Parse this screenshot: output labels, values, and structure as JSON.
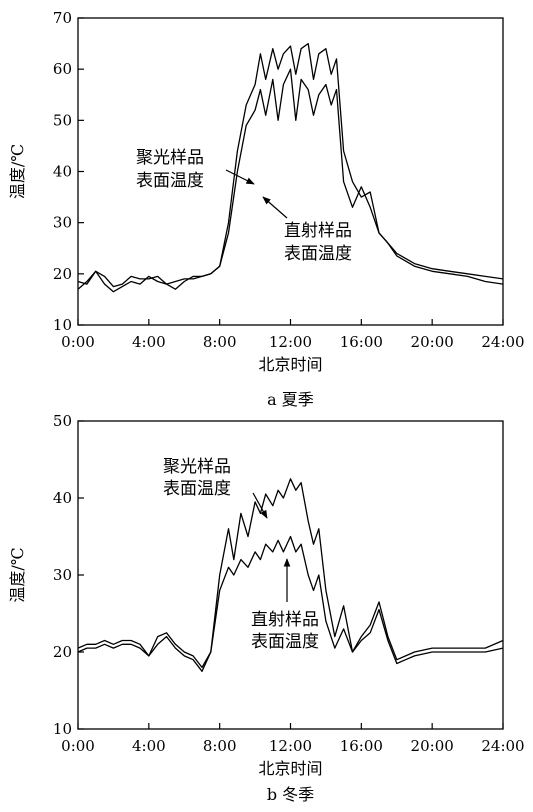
{
  "chart_data": [
    {
      "type": "line",
      "caption": "a 夏季",
      "xlabel": "北京时间",
      "ylabel": "温度/℃",
      "xlim": [
        0,
        24
      ],
      "ylim": [
        10,
        70
      ],
      "xticks": [
        "0:00",
        "4:00",
        "8:00",
        "12:00",
        "16:00",
        "20:00",
        "24:00"
      ],
      "yticks": [
        "10",
        "20",
        "30",
        "40",
        "50",
        "60",
        "70"
      ],
      "annotations": [
        {
          "lines": [
            "聚光样品",
            "表面温度"
          ],
          "series": "聚光样品表面温度"
        },
        {
          "lines": [
            "直射样品",
            "表面温度"
          ],
          "series": "直射样品表面温度"
        }
      ],
      "series": [
        {
          "name": "聚光样品表面温度",
          "x": [
            0,
            0.5,
            1,
            1.5,
            2,
            2.5,
            3,
            3.5,
            4,
            4.5,
            5,
            5.5,
            6,
            6.5,
            7,
            7.5,
            8,
            8.5,
            9,
            9.5,
            10,
            10.3,
            10.6,
            11,
            11.3,
            11.6,
            12,
            12.3,
            12.6,
            13,
            13.3,
            13.6,
            14,
            14.3,
            14.6,
            15,
            15.5,
            16,
            16.5,
            17,
            17.5,
            18,
            19,
            20,
            21,
            22,
            23,
            24
          ],
          "y": [
            17,
            18.5,
            20.5,
            18,
            16.5,
            17.5,
            18.5,
            18,
            19.5,
            18.5,
            18,
            17,
            18.5,
            19.5,
            19.5,
            20,
            21.5,
            30,
            44,
            53,
            57,
            63,
            58,
            64,
            60,
            63,
            64.5,
            59,
            64,
            65,
            58,
            63,
            64,
            59,
            62,
            44,
            38,
            35,
            36,
            28,
            26,
            24,
            22,
            21,
            20.5,
            20,
            19.5,
            19
          ]
        },
        {
          "name": "直射样品表面温度",
          "x": [
            0,
            0.5,
            1,
            1.5,
            2,
            2.5,
            3,
            3.5,
            4,
            4.5,
            5,
            5.5,
            6,
            6.5,
            7,
            7.5,
            8,
            8.5,
            9,
            9.5,
            10,
            10.3,
            10.6,
            11,
            11.3,
            11.6,
            12,
            12.3,
            12.6,
            13,
            13.3,
            13.6,
            14,
            14.3,
            14.6,
            15,
            15.5,
            16,
            16.5,
            17,
            17.5,
            18,
            19,
            20,
            21,
            22,
            23,
            24
          ],
          "y": [
            18.5,
            18,
            20.5,
            19.5,
            17.5,
            18,
            19.5,
            19,
            19,
            19.5,
            18,
            18.5,
            19,
            19,
            19.5,
            20,
            21.5,
            28,
            40,
            49,
            52,
            56,
            51,
            58,
            50,
            57,
            60,
            50,
            58,
            56,
            51,
            55,
            57,
            53,
            56,
            38,
            33,
            37,
            33,
            28,
            26,
            23.5,
            21.5,
            20.5,
            20,
            19.5,
            18.5,
            18
          ]
        }
      ]
    },
    {
      "type": "line",
      "caption": "b 冬季",
      "xlabel": "北京时间",
      "ylabel": "温度/℃",
      "xlim": [
        0,
        24
      ],
      "ylim": [
        10,
        50
      ],
      "xticks": [
        "0:00",
        "4:00",
        "8:00",
        "12:00",
        "16:00",
        "20:00",
        "24:00"
      ],
      "yticks": [
        "10",
        "20",
        "30",
        "40",
        "50"
      ],
      "annotations": [
        {
          "lines": [
            "聚光样品",
            "表面温度"
          ],
          "series": "聚光样品表面温度"
        },
        {
          "lines": [
            "直射样品",
            "表面温度"
          ],
          "series": "直射样品表面温度"
        }
      ],
      "series": [
        {
          "name": "聚光样品表面温度",
          "x": [
            0,
            0.5,
            1,
            1.5,
            2,
            2.5,
            3,
            3.5,
            4,
            4.5,
            5,
            5.5,
            6,
            6.5,
            7,
            7.5,
            8,
            8.5,
            8.8,
            9.2,
            9.6,
            10,
            10.3,
            10.6,
            11,
            11.3,
            11.6,
            12,
            12.3,
            12.6,
            13,
            13.3,
            13.6,
            14,
            14.5,
            15,
            15.5,
            16,
            16.5,
            17,
            17.5,
            18,
            18.5,
            19,
            20,
            21,
            22,
            23,
            24
          ],
          "y": [
            20.5,
            21,
            21,
            21.5,
            21,
            21.5,
            21.5,
            21,
            19.5,
            22,
            22.5,
            21,
            20,
            19.5,
            18,
            20,
            30,
            36,
            32,
            38,
            35,
            39.5,
            38,
            40.5,
            39,
            41,
            40,
            42.5,
            41,
            42,
            37,
            34,
            36,
            28,
            22,
            26,
            20,
            22,
            23.5,
            26.5,
            22,
            19,
            19.5,
            20,
            20.5,
            20.5,
            20.5,
            20.5,
            21.5
          ]
        },
        {
          "name": "直射样品表面温度",
          "x": [
            0,
            0.5,
            1,
            1.5,
            2,
            2.5,
            3,
            3.5,
            4,
            4.5,
            5,
            5.5,
            6,
            6.5,
            7,
            7.5,
            8,
            8.5,
            8.8,
            9.2,
            9.6,
            10,
            10.3,
            10.6,
            11,
            11.3,
            11.6,
            12,
            12.3,
            12.6,
            13,
            13.3,
            13.6,
            14,
            14.5,
            15,
            15.5,
            16,
            16.5,
            17,
            17.5,
            18,
            18.5,
            19,
            20,
            21,
            22,
            23,
            24
          ],
          "y": [
            20,
            20.5,
            20.5,
            21,
            20.5,
            21,
            21,
            20.5,
            19.5,
            21,
            22,
            20.5,
            19.5,
            19,
            17.5,
            20,
            28,
            31,
            30,
            32,
            31,
            33,
            32,
            34,
            33,
            34.5,
            33,
            35,
            33,
            34,
            30,
            28,
            30,
            24,
            20.5,
            23,
            20,
            21.5,
            22.5,
            25.5,
            21.5,
            18.5,
            19,
            19.5,
            20,
            20,
            20,
            20,
            20.5
          ]
        }
      ]
    }
  ]
}
